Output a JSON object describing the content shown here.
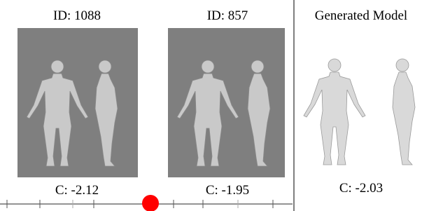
{
  "panels": [
    {
      "title": "ID: 1088",
      "caption": "C: -2.12"
    },
    {
      "title": "ID: 857",
      "caption": "C: -1.95"
    }
  ],
  "generated": {
    "title": "Generated Model",
    "caption": "C: -2.03"
  }
}
